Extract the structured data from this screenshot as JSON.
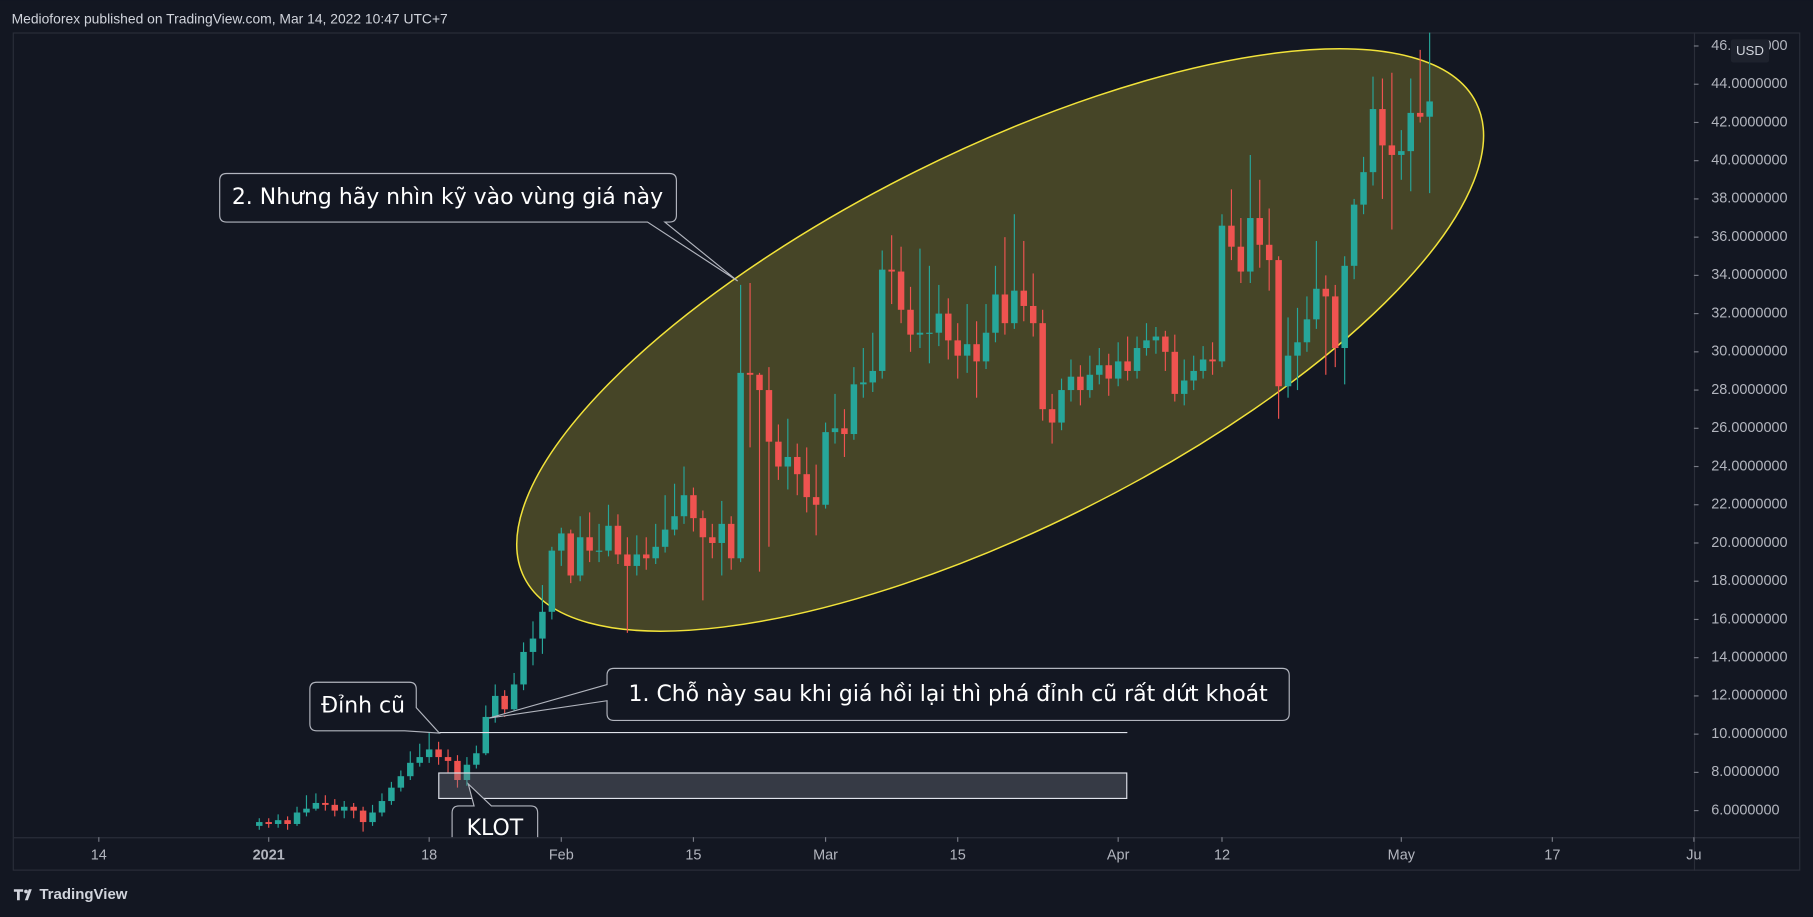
{
  "header": "Medioforex published on TradingView.com, Mar 14, 2022 10:47 UTC+7",
  "footer": "TradingView",
  "chart_data": {
    "type": "candlestick",
    "currency": "USD",
    "up_color": "#26a69a",
    "down_color": "#ef5350",
    "grid": false,
    "annotations": [
      "2. Nhưng hãy nhìn kỹ vào vùng giá này",
      "Đỉnh cũ",
      "1. Chỗ này sau khi giá hồi lại thì phá đỉnh cũ rất dứt khoát",
      "KLOT"
    ],
    "xlim": [
      "2020-12-05",
      "2021-06-01"
    ],
    "xticks": [
      {
        "value": "2020-12-14",
        "label": "14"
      },
      {
        "value": "2021-01-01",
        "label": "2021"
      },
      {
        "value": "2021-01-18",
        "label": "18"
      },
      {
        "value": "2021-02-01",
        "label": "Feb"
      },
      {
        "value": "2021-02-15",
        "label": "15"
      },
      {
        "value": "2021-03-01",
        "label": "Mar"
      },
      {
        "value": "2021-03-15",
        "label": "15"
      },
      {
        "value": "2021-04-01",
        "label": "Apr"
      },
      {
        "value": "2021-04-12",
        "label": "12"
      },
      {
        "value": "2021-05-01",
        "label": "May"
      },
      {
        "value": "2021-05-17",
        "label": "17"
      },
      {
        "value": "2021-06-01",
        "label": "Ju"
      }
    ],
    "ylim": [
      4.61,
      46.71
    ],
    "yticks": [
      {
        "value": 6,
        "label": "6.0000000"
      },
      {
        "value": 8,
        "label": "8.0000000"
      },
      {
        "value": 10,
        "label": "10.0000000"
      },
      {
        "value": 12,
        "label": "12.0000000"
      },
      {
        "value": 14,
        "label": "14.0000000"
      },
      {
        "value": 16,
        "label": "16.0000000"
      },
      {
        "value": 18,
        "label": "18.0000000"
      },
      {
        "value": 20,
        "label": "20.0000000"
      },
      {
        "value": 22,
        "label": "22.0000000"
      },
      {
        "value": 24,
        "label": "24.0000000"
      },
      {
        "value": 26,
        "label": "26.0000000"
      },
      {
        "value": 28,
        "label": "28.0000000"
      },
      {
        "value": 30,
        "label": "30.0000000"
      },
      {
        "value": 32,
        "label": "32.0000000"
      },
      {
        "value": 34,
        "label": "34.0000000"
      },
      {
        "value": 36,
        "label": "36.0000000"
      },
      {
        "value": 38,
        "label": "38.0000000"
      },
      {
        "value": 40,
        "label": "40.0000000"
      },
      {
        "value": 42,
        "label": "42.0000000"
      },
      {
        "value": 44,
        "label": "44.0000000"
      },
      {
        "value": 46,
        "label": "46.0000000"
      }
    ],
    "x": [
      "2020-12-31",
      "2021-01-01",
      "2021-01-02",
      "2021-01-03",
      "2021-01-04",
      "2021-01-05",
      "2021-01-06",
      "2021-01-07",
      "2021-01-08",
      "2021-01-09",
      "2021-01-10",
      "2021-01-11",
      "2021-01-12",
      "2021-01-13",
      "2021-01-14",
      "2021-01-15",
      "2021-01-16",
      "2021-01-17",
      "2021-01-18",
      "2021-01-19",
      "2021-01-20",
      "2021-01-21",
      "2021-01-22",
      "2021-01-23",
      "2021-01-24",
      "2021-01-25",
      "2021-01-26",
      "2021-01-27",
      "2021-01-28",
      "2021-01-29",
      "2021-01-30",
      "2021-01-31",
      "2021-02-01",
      "2021-02-02",
      "2021-02-03",
      "2021-02-04",
      "2021-02-05",
      "2021-02-06",
      "2021-02-07",
      "2021-02-08",
      "2021-02-09",
      "2021-02-10",
      "2021-02-11",
      "2021-02-12",
      "2021-02-13",
      "2021-02-14",
      "2021-02-15",
      "2021-02-16",
      "2021-02-17",
      "2021-02-18",
      "2021-02-19",
      "2021-02-20",
      "2021-02-21",
      "2021-02-22",
      "2021-02-23",
      "2021-02-24",
      "2021-02-25",
      "2021-02-26",
      "2021-02-27",
      "2021-02-28",
      "2021-03-01",
      "2021-03-02",
      "2021-03-03",
      "2021-03-04",
      "2021-03-05",
      "2021-03-06",
      "2021-03-07",
      "2021-03-08",
      "2021-03-09",
      "2021-03-10",
      "2021-03-11",
      "2021-03-12",
      "2021-03-13",
      "2021-03-14",
      "2021-03-15",
      "2021-03-16",
      "2021-03-17",
      "2021-03-18",
      "2021-03-19",
      "2021-03-20",
      "2021-03-21",
      "2021-03-22",
      "2021-03-23",
      "2021-03-24",
      "2021-03-25",
      "2021-03-26",
      "2021-03-27",
      "2021-03-28",
      "2021-03-29",
      "2021-03-30",
      "2021-03-31",
      "2021-04-01",
      "2021-04-02",
      "2021-04-03",
      "2021-04-04",
      "2021-04-05",
      "2021-04-06",
      "2021-04-07",
      "2021-04-08",
      "2021-04-09",
      "2021-04-10",
      "2021-04-11",
      "2021-04-12",
      "2021-04-13",
      "2021-04-14",
      "2021-04-15",
      "2021-04-16",
      "2021-04-17",
      "2021-04-18",
      "2021-04-19",
      "2021-04-20",
      "2021-04-21",
      "2021-04-22",
      "2021-04-23",
      "2021-04-24",
      "2021-04-25",
      "2021-04-26",
      "2021-04-27",
      "2021-04-28",
      "2021-04-29",
      "2021-04-30",
      "2021-05-01",
      "2021-05-02",
      "2021-05-03",
      "2021-05-04"
    ],
    "open": [
      5.2,
      5.4,
      5.3,
      5.5,
      5.3,
      5.9,
      6.1,
      6.4,
      6.3,
      6.0,
      6.2,
      6.0,
      5.4,
      5.9,
      6.5,
      7.2,
      7.8,
      8.5,
      8.8,
      9.2,
      8.8,
      8.6,
      7.6,
      8.4,
      9.0,
      10.9,
      12.0,
      11.3,
      12.6,
      14.3,
      15.0,
      16.4,
      19.6,
      20.5,
      18.3,
      20.3,
      19.6,
      19.6,
      20.9,
      19.4,
      18.8,
      19.4,
      19.2,
      19.8,
      20.7,
      21.4,
      22.5,
      21.3,
      20.3,
      20.0,
      21.0,
      19.2,
      28.9,
      28.8,
      28.0,
      25.3,
      24.0,
      24.5,
      23.6,
      22.4,
      22.0,
      25.8,
      26.0,
      25.7,
      28.3,
      28.4,
      29.0,
      34.3,
      34.2,
      32.2,
      30.9,
      31.0,
      31.0,
      32.0,
      30.6,
      29.8,
      30.4,
      29.5,
      31.0,
      33.0,
      31.5,
      33.2,
      32.4,
      31.5,
      27.0,
      26.3,
      28.0,
      28.7,
      28.0,
      28.8,
      29.3,
      28.6,
      29.5,
      29.0,
      30.2,
      30.6,
      30.8,
      30.0,
      27.8,
      28.5,
      29.0,
      29.6,
      29.5,
      36.6,
      35.5,
      34.2,
      37.0,
      35.6,
      34.8,
      28.2,
      29.8,
      30.5,
      31.7,
      33.3,
      32.9,
      30.2,
      34.5,
      37.7,
      39.4,
      42.7,
      40.8,
      40.3,
      40.5,
      42.5,
      42.3
    ],
    "high": [
      5.6,
      5.6,
      5.8,
      5.7,
      6.2,
      6.8,
      6.9,
      6.8,
      6.6,
      6.5,
      6.4,
      6.2,
      6.3,
      6.9,
      7.5,
      8.1,
      9.1,
      9.5,
      10.2,
      9.6,
      9.2,
      8.9,
      8.8,
      9.4,
      11.5,
      12.6,
      12.3,
      13.2,
      14.8,
      15.9,
      17.8,
      19.8,
      20.8,
      20.7,
      21.4,
      21.6,
      21.0,
      22.0,
      21.5,
      20.3,
      20.4,
      20.3,
      21.0,
      22.5,
      23.1,
      24.0,
      22.9,
      21.7,
      21.0,
      22.2,
      21.4,
      33.5,
      33.6,
      28.9,
      29.2,
      26.2,
      26.5,
      25.2,
      25.0,
      24.1,
      26.3,
      27.8,
      27.0,
      29.2,
      30.2,
      31.0,
      35.3,
      36.1,
      35.5,
      33.4,
      35.4,
      34.5,
      33.5,
      32.8,
      31.5,
      32.5,
      31.6,
      32.5,
      34.5,
      36.0,
      37.2,
      35.8,
      34.1,
      32.2,
      27.8,
      28.6,
      29.6,
      29.3,
      29.8,
      30.2,
      29.9,
      30.5,
      30.8,
      30.8,
      31.5,
      31.3,
      31.1,
      30.9,
      29.6,
      29.8,
      30.3,
      30.5,
      37.2,
      38.5,
      37.0,
      40.3,
      39.0,
      37.5,
      35.0,
      31.8,
      32.3,
      32.9,
      35.8,
      34.0,
      33.5,
      35.0,
      38.0,
      40.2,
      44.4,
      44.3,
      44.6,
      41.6,
      44.3,
      45.8,
      46.7
    ],
    "low": [
      5.0,
      5.1,
      5.1,
      5.0,
      5.2,
      5.7,
      6.0,
      6.0,
      5.7,
      5.6,
      5.6,
      4.9,
      5.2,
      5.7,
      6.3,
      7.0,
      7.6,
      8.3,
      8.5,
      8.4,
      8.0,
      7.2,
      7.3,
      8.2,
      8.9,
      10.6,
      10.9,
      11.0,
      12.3,
      13.6,
      14.2,
      16.0,
      18.8,
      17.9,
      18.0,
      19.0,
      19.0,
      19.3,
      18.9,
      15.3,
      18.3,
      18.6,
      18.9,
      19.5,
      20.4,
      21.0,
      20.6,
      17.0,
      19.2,
      18.3,
      18.6,
      19.0,
      25.0,
      18.5,
      19.8,
      23.3,
      22.8,
      22.5,
      21.6,
      20.4,
      21.8,
      25.2,
      24.5,
      25.4,
      27.6,
      27.9,
      28.6,
      32.5,
      31.5,
      30.0,
      30.2,
      29.4,
      30.3,
      29.6,
      28.6,
      28.9,
      27.6,
      29.1,
      30.5,
      30.9,
      31.2,
      31.6,
      30.8,
      26.4,
      25.2,
      25.9,
      27.4,
      27.2,
      27.6,
      28.3,
      27.7,
      28.2,
      28.5,
      28.6,
      29.8,
      29.9,
      29.0,
      27.4,
      27.2,
      28.0,
      28.6,
      28.8,
      29.2,
      34.8,
      33.6,
      33.6,
      34.4,
      33.2,
      26.5,
      27.6,
      28.0,
      30.0,
      31.2,
      28.8,
      29.2,
      28.3,
      33.8,
      37.2,
      38.7,
      38.0,
      36.4,
      39.0,
      38.4,
      42.0,
      38.3
    ],
    "close": [
      5.4,
      5.3,
      5.5,
      5.3,
      5.9,
      6.1,
      6.4,
      6.3,
      6.0,
      6.2,
      6.0,
      5.4,
      5.9,
      6.5,
      7.2,
      7.8,
      8.5,
      8.8,
      9.2,
      8.8,
      8.6,
      7.6,
      8.4,
      9.0,
      10.9,
      12.0,
      11.3,
      12.6,
      14.3,
      15.0,
      16.4,
      19.6,
      20.5,
      18.3,
      20.3,
      19.6,
      19.6,
      20.9,
      19.4,
      18.8,
      19.4,
      19.2,
      19.8,
      20.7,
      21.4,
      22.5,
      21.3,
      20.3,
      20.0,
      21.0,
      19.2,
      28.9,
      28.8,
      28.0,
      25.3,
      24.0,
      24.5,
      23.6,
      22.4,
      22.0,
      25.8,
      26.0,
      25.7,
      28.3,
      28.4,
      29.0,
      34.3,
      34.2,
      32.2,
      30.9,
      31.0,
      31.0,
      32.0,
      30.6,
      29.8,
      30.4,
      29.5,
      31.0,
      33.0,
      31.5,
      33.2,
      32.4,
      31.5,
      27.0,
      26.3,
      28.0,
      28.7,
      28.0,
      28.8,
      29.3,
      28.6,
      29.5,
      29.0,
      30.2,
      30.6,
      30.8,
      30.0,
      27.8,
      28.5,
      29.0,
      29.6,
      29.5,
      36.6,
      35.5,
      34.2,
      37.0,
      35.6,
      34.8,
      28.2,
      29.8,
      30.5,
      31.7,
      33.3,
      32.9,
      30.2,
      34.5,
      37.7,
      39.4,
      42.7,
      40.8,
      40.3,
      40.5,
      42.5,
      42.3,
      43.1
    ]
  }
}
